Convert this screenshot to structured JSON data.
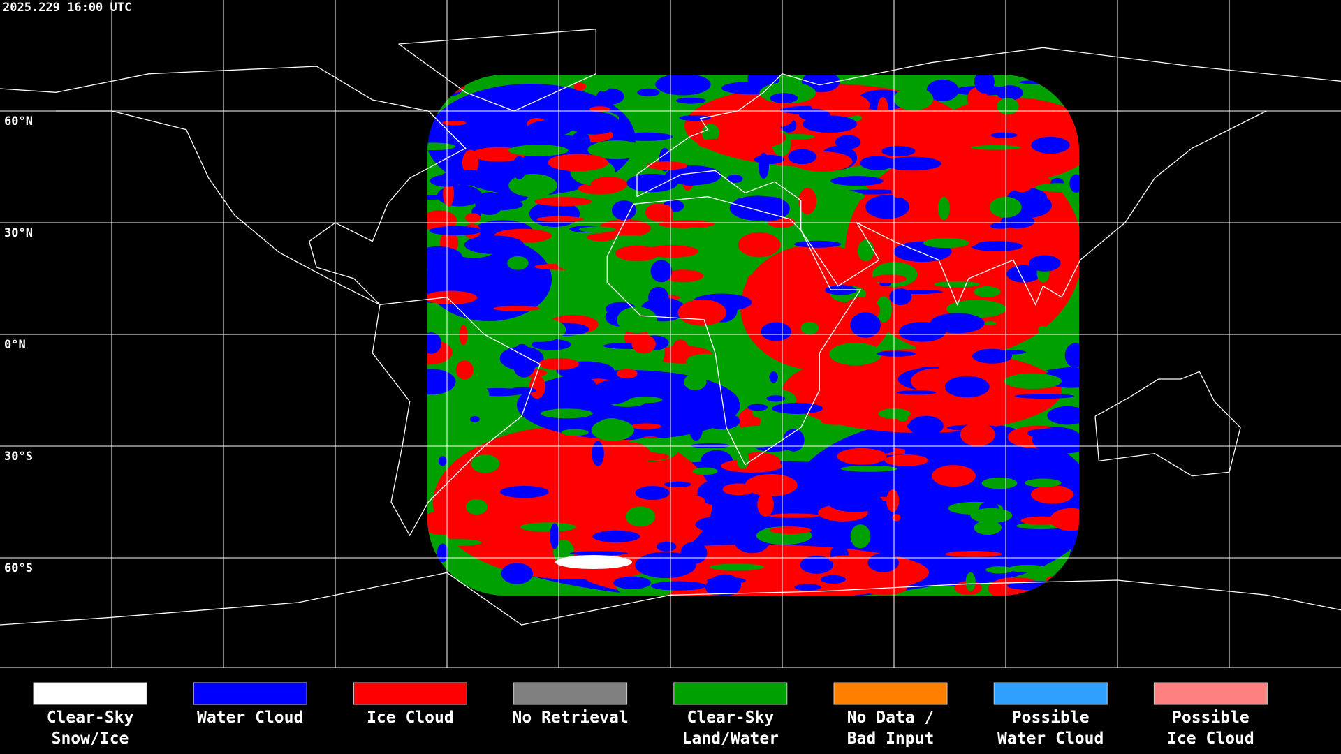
{
  "timestamp": "2025.229 16:00 UTC",
  "latitude_labels": [
    "60°N",
    "30°N",
    "0°N",
    "30°S",
    "60°S"
  ],
  "legend": [
    {
      "lines": [
        "Clear-Sky",
        "Snow/Ice"
      ],
      "color": "#ffffff"
    },
    {
      "lines": [
        "Water Cloud"
      ],
      "color": "#0000ff"
    },
    {
      "lines": [
        "Ice Cloud"
      ],
      "color": "#ff0000"
    },
    {
      "lines": [
        "No Retrieval"
      ],
      "color": "#808080"
    },
    {
      "lines": [
        "Clear-Sky",
        "Land/Water"
      ],
      "color": "#00a000"
    },
    {
      "lines": [
        "No Data /",
        "Bad Input"
      ],
      "color": "#ff8000"
    },
    {
      "lines": [
        "Possible",
        "Water Cloud"
      ],
      "color": "#30a0ff"
    },
    {
      "lines": [
        "Possible",
        "Ice Cloud"
      ],
      "color": "#ff8080"
    }
  ]
}
